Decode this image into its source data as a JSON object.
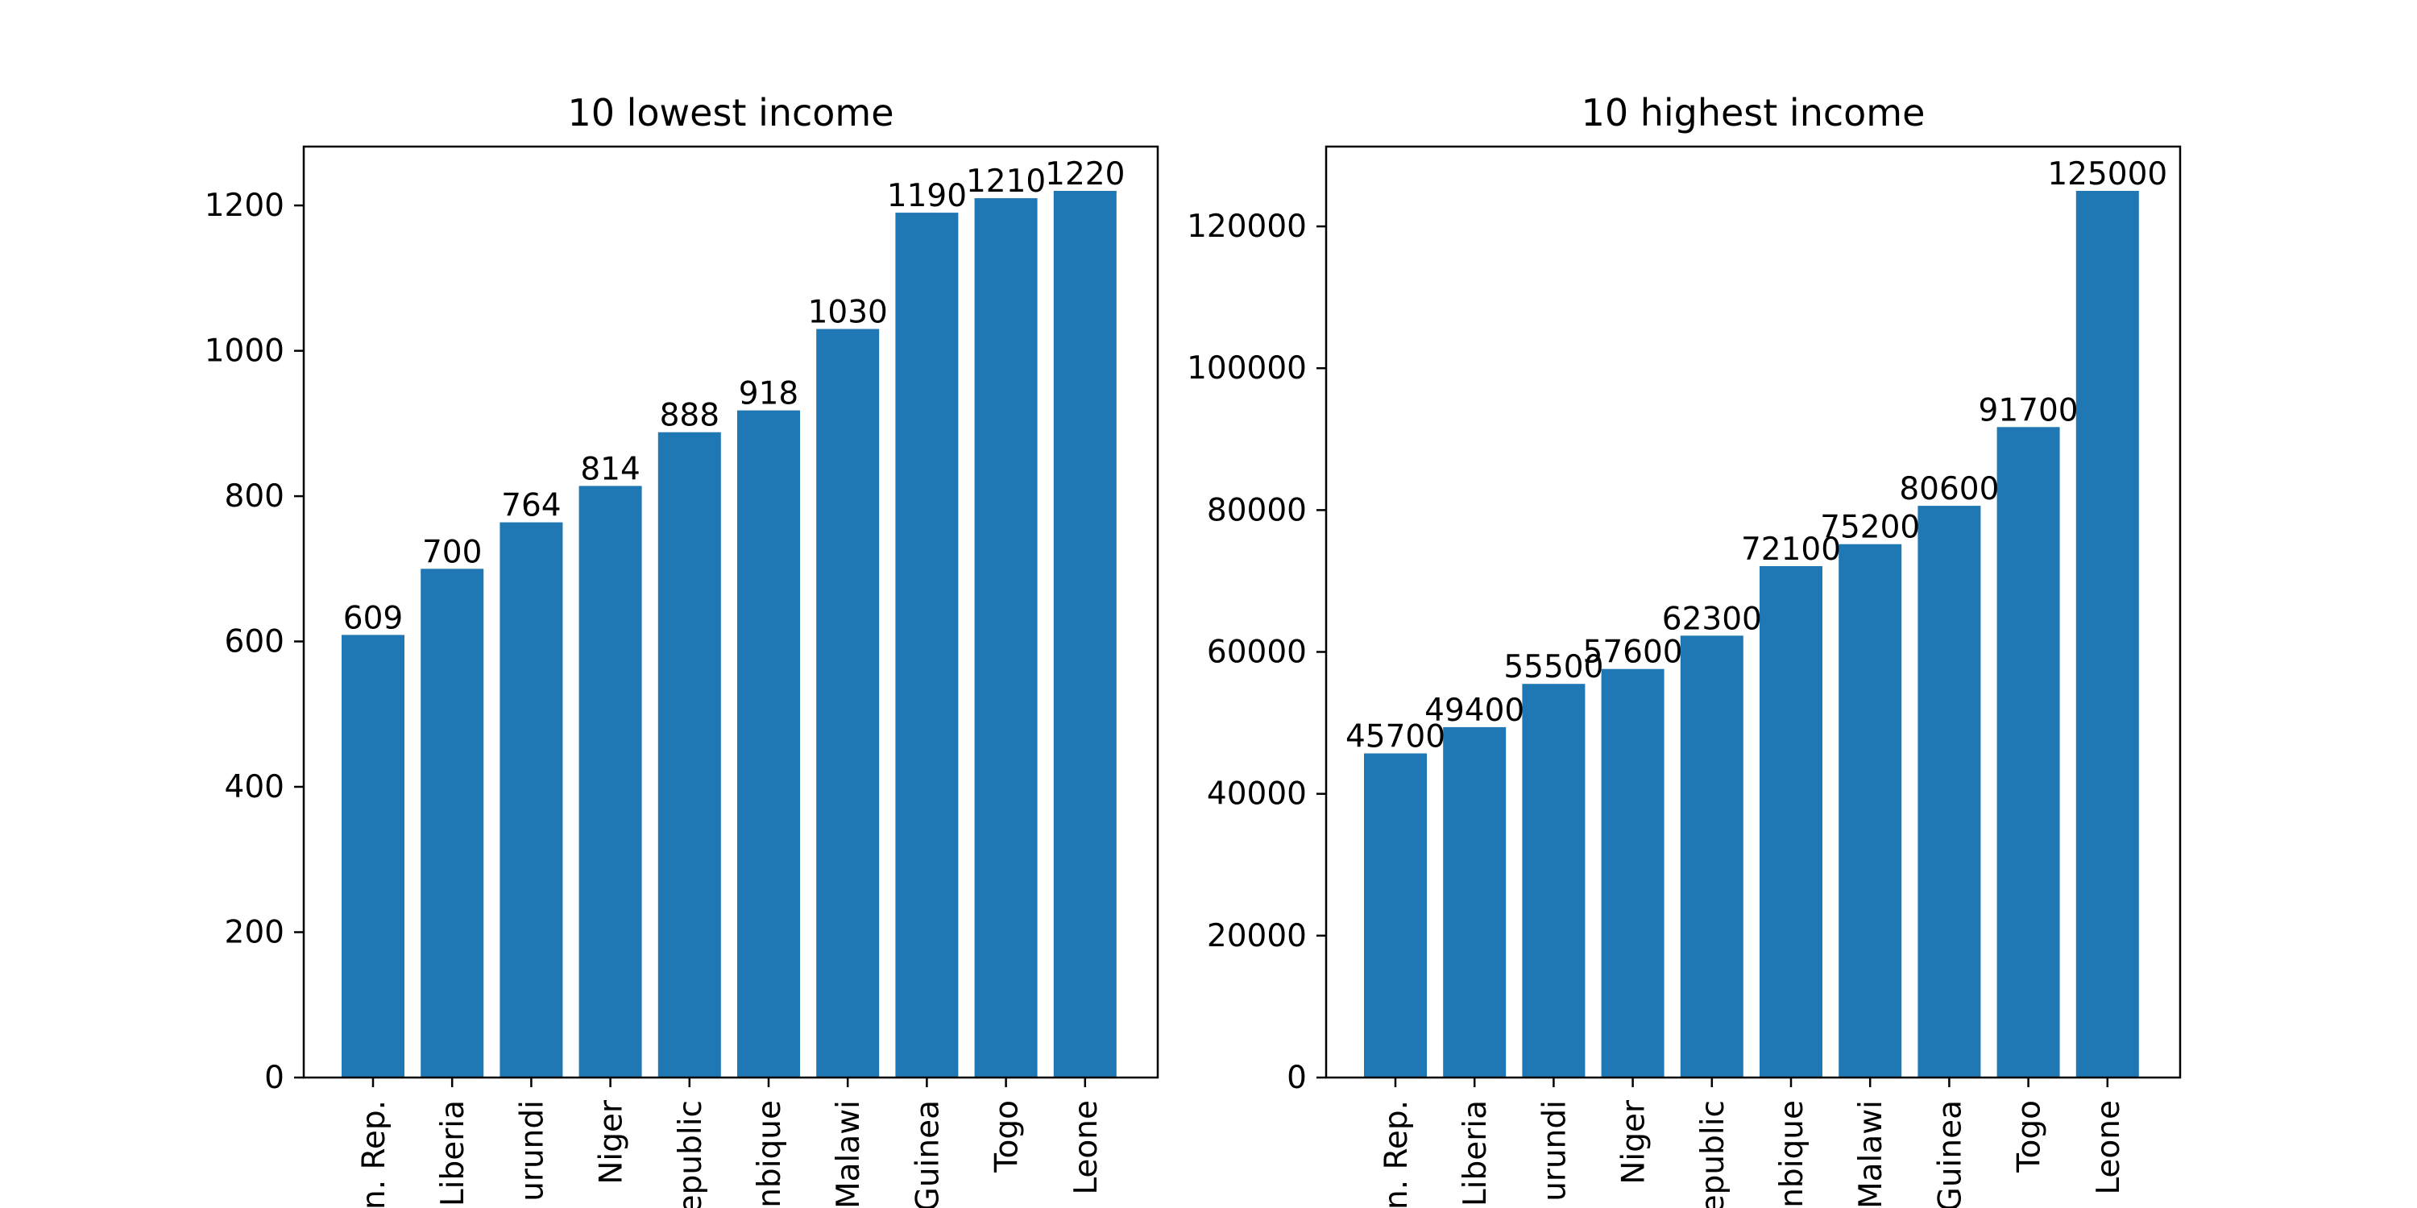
{
  "chart_data": [
    {
      "type": "bar",
      "title": "10 lowest income",
      "xlabel": "",
      "ylabel": "",
      "categories": [
        "n. Rep.",
        "Liberia",
        "urundi",
        "Niger",
        "epublic",
        "nbique",
        "Malawi",
        "Guinea",
        "Togo",
        "Leone"
      ],
      "values": [
        609,
        700,
        764,
        814,
        888,
        918,
        1030,
        1190,
        1210,
        1220
      ],
      "value_labels": [
        "609",
        "700",
        "764",
        "814",
        "888",
        "918",
        "1030",
        "1190",
        "1210",
        "1220"
      ],
      "yticks": [
        0,
        200,
        400,
        600,
        800,
        1000,
        1200
      ],
      "ylim": [
        0,
        1281
      ],
      "grid": false,
      "color": "#1f77b4"
    },
    {
      "type": "bar",
      "title": "10 highest income",
      "xlabel": "",
      "ylabel": "",
      "categories": [
        "n. Rep.",
        "Liberia",
        "urundi",
        "Niger",
        "epublic",
        "nbique",
        "Malawi",
        "Guinea",
        "Togo",
        "Leone"
      ],
      "values": [
        45700,
        49400,
        55500,
        57600,
        62300,
        72100,
        75200,
        80600,
        91700,
        125000
      ],
      "value_labels": [
        "45700",
        "49400",
        "55500",
        "57600",
        "62300",
        "72100",
        "75200",
        "80600",
        "91700",
        "125000"
      ],
      "yticks": [
        0,
        20000,
        40000,
        60000,
        80000,
        100000,
        120000
      ],
      "ylim": [
        0,
        131250
      ],
      "grid": false,
      "color": "#1f77b4"
    }
  ]
}
